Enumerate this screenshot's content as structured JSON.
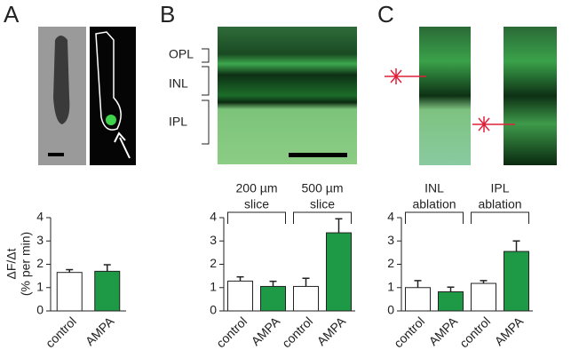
{
  "panels": [
    "A",
    "B",
    "C"
  ],
  "image_labels": [
    "OPL",
    "INL",
    "IPL"
  ],
  "chart_data": [
    {
      "type": "bar",
      "ylabel": [
        "ΔF/Δt",
        "(% per min)"
      ],
      "categories": [
        "control",
        "AMPA"
      ],
      "values": [
        1.65,
        1.7
      ],
      "errors": [
        0.12,
        0.28
      ],
      "colors": [
        "#ffffff",
        "#1e9a46"
      ],
      "ylim": [
        0,
        4
      ],
      "yticks": [
        0,
        1,
        2,
        3,
        4
      ]
    },
    {
      "type": "bar",
      "groups": [
        [
          "200 µm",
          "slice"
        ],
        [
          "500 µm",
          "slice"
        ]
      ],
      "categories": [
        "control",
        "AMPA",
        "control",
        "AMPA"
      ],
      "values": [
        1.28,
        1.05,
        1.05,
        3.35
      ],
      "errors": [
        0.18,
        0.22,
        0.35,
        0.6
      ],
      "colors": [
        "#ffffff",
        "#1e9a46",
        "#ffffff",
        "#1e9a46"
      ],
      "ylim": [
        0,
        4
      ],
      "yticks": [
        0,
        1,
        2,
        3,
        4
      ]
    },
    {
      "type": "bar",
      "groups": [
        [
          "INL",
          "ablation"
        ],
        [
          "IPL",
          "ablation"
        ]
      ],
      "categories": [
        "control",
        "AMPA",
        "control",
        "AMPA"
      ],
      "values": [
        1.0,
        0.82,
        1.18,
        2.55
      ],
      "errors": [
        0.3,
        0.2,
        0.12,
        0.45
      ],
      "colors": [
        "#ffffff",
        "#1e9a46",
        "#ffffff",
        "#1e9a46"
      ],
      "ylim": [
        0,
        4
      ],
      "yticks": [
        0,
        1,
        2,
        3,
        4
      ]
    }
  ]
}
